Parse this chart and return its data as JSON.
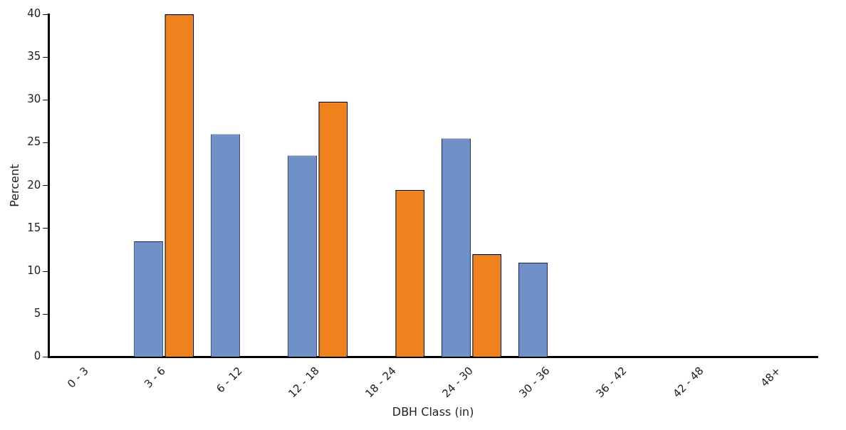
{
  "chart_data": {
    "type": "bar",
    "xlabel": "DBH Class (in)",
    "ylabel": "Percent",
    "categories": [
      "0 - 3",
      "3 - 6",
      "6 - 12",
      "12 - 18",
      "18 - 24",
      "24 - 30",
      "30 - 36",
      "36 - 42",
      "42 - 48",
      "48+"
    ],
    "series": [
      {
        "color": "#7090c8",
        "values": [
          0,
          13.5,
          26,
          23.5,
          0,
          25.5,
          11,
          0,
          0,
          0
        ]
      },
      {
        "color": "#f0821e",
        "values": [
          0,
          40,
          0,
          29.8,
          19.5,
          12,
          0,
          0,
          0,
          0
        ]
      }
    ],
    "ylim": [
      0,
      40
    ],
    "yticks": [
      0,
      5,
      10,
      15,
      20,
      25,
      30,
      35,
      40
    ],
    "grid": false,
    "legend": false
  }
}
